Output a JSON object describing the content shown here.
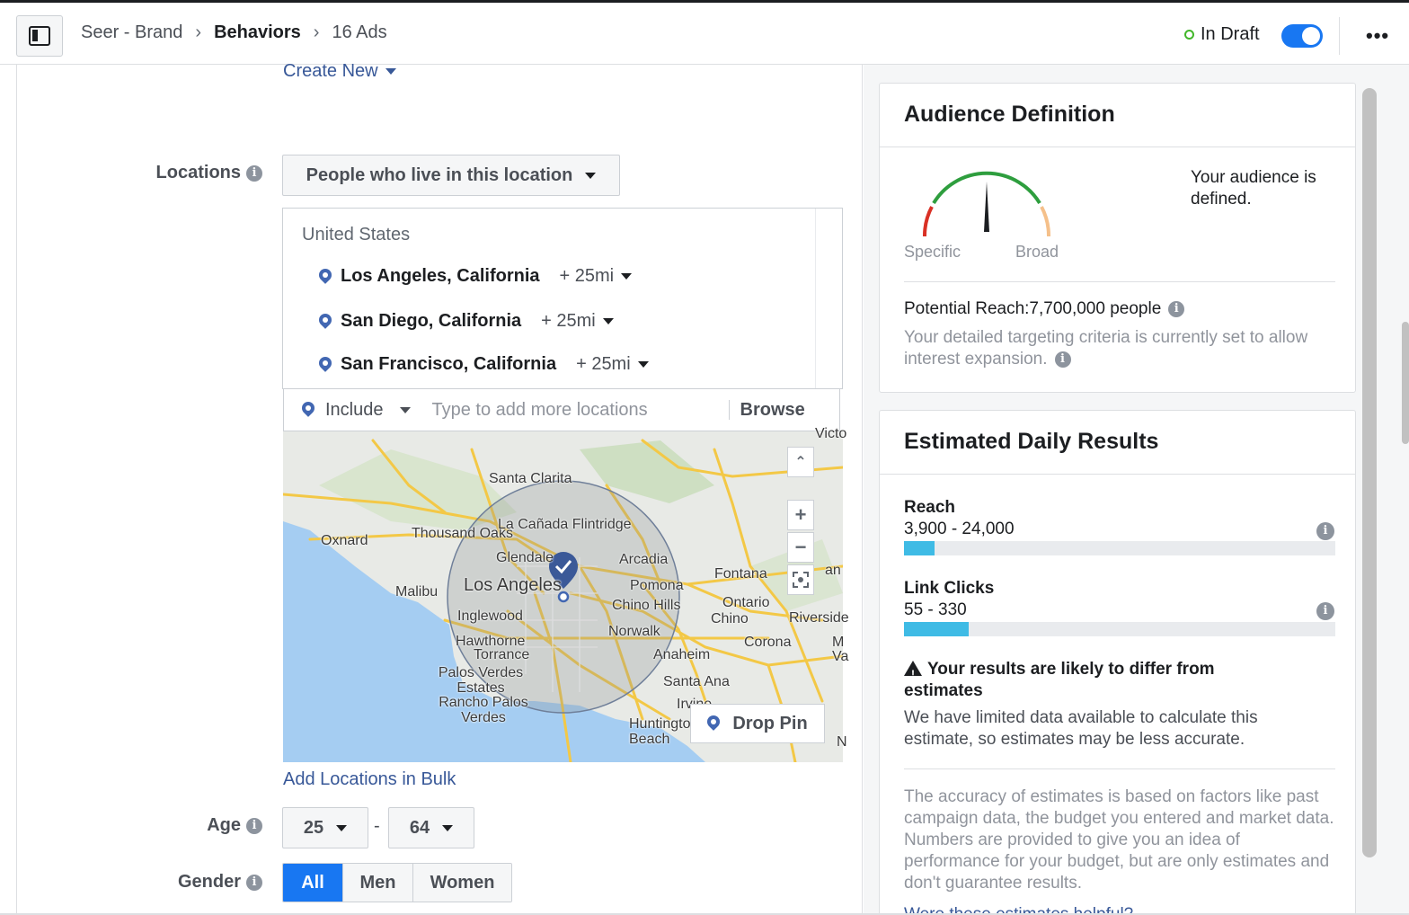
{
  "header": {
    "breadcrumb": [
      "Seer - Brand",
      "Behaviors",
      "16 Ads"
    ],
    "status_label": "In Draft",
    "toggle_on": true,
    "more_icon": "more-icon"
  },
  "audience_form": {
    "create_new_label": "Create New",
    "locations": {
      "label": "Locations",
      "type_dropdown": "People who live in this location",
      "country": "United States",
      "items": [
        {
          "name": "Los Angeles, California",
          "radius": "+ 25mi"
        },
        {
          "name": "San Diego, California",
          "radius": "+ 25mi"
        },
        {
          "name": "San Francisco, California",
          "radius": "+ 25mi"
        }
      ],
      "include_label": "Include",
      "input_placeholder": "Type to add more locations",
      "browse_label": "Browse",
      "drop_pin_label": "Drop Pin",
      "add_bulk_label": "Add Locations in Bulk"
    },
    "map": {
      "labels": [
        "Santa Clarita",
        "Thousand Oaks",
        "Oxnard",
        "La Cañada Flintridge",
        "Glendale",
        "Arcadia",
        "Fontana",
        "Los Angeles",
        "Pomona",
        "Ontario",
        "Malibu",
        "Chino Hills",
        "Chino",
        "Riverside",
        "Inglewood",
        "Norwalk",
        "Corona",
        "Hawthorne",
        "Torrance",
        "Anaheim",
        "Palos Verdes Estates",
        "Santa Ana",
        "Rancho Palos Verdes",
        "Irvine",
        "Huntington Beach",
        "Victo",
        "an",
        "M",
        "Va",
        "N"
      ],
      "zoom_in": "+",
      "zoom_out": "−",
      "scroll_up": "⌃"
    },
    "age": {
      "label": "Age",
      "min": "25",
      "separator": "-",
      "max": "64"
    },
    "gender": {
      "label": "Gender",
      "options": [
        "All",
        "Men",
        "Women"
      ],
      "selected": "All"
    }
  },
  "audience_definition": {
    "title": "Audience Definition",
    "gauge_left": "Specific",
    "gauge_right": "Broad",
    "summary": "Your audience is defined.",
    "potential_reach": "Potential Reach:7,700,000 people",
    "note": "Your detailed targeting criteria is currently set to allow interest expansion."
  },
  "estimated_daily_results": {
    "title": "Estimated Daily Results",
    "metrics": [
      {
        "name": "Reach",
        "range": "3,900 - 24,000",
        "fill_fraction": 0.07
      },
      {
        "name": "Link Clicks",
        "range": "55 - 330",
        "fill_fraction": 0.15
      }
    ],
    "warning_title": "Your results are likely to differ from estimates",
    "warning_body": "We have limited data available to calculate this estimate, so estimates may be less accurate.",
    "disclaimer": "The accuracy of estimates is based on factors like past campaign data, the budget you entered and market data. Numbers are provided to give you an idea of performance for your budget, but are only estimates and don't guarantee results.",
    "feedback_link": "Were these estimates helpful?"
  },
  "colors": {
    "accent": "#1877f2",
    "link": "#385898",
    "reach_fill": "#3fbbe5",
    "status_dot": "#42b72a"
  }
}
